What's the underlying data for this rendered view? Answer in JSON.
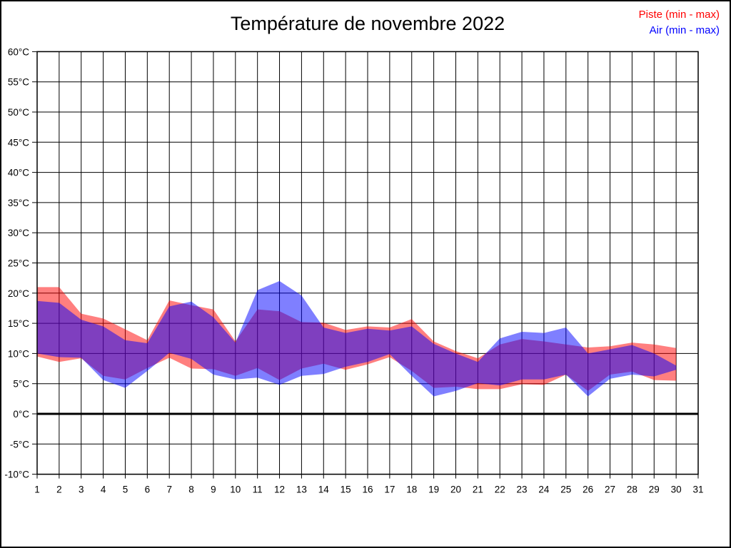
{
  "title": "Température de novembre 2022",
  "legend": {
    "piste": "Piste (min - max)",
    "air": "Air (min - max)"
  },
  "colors": {
    "piste": "#ff0000",
    "air": "#0000ff",
    "piste_fill": "rgba(255,0,0,0.5)",
    "air_fill": "rgba(0,0,255,0.5)",
    "grid": "#000000",
    "background": "#ffffff"
  },
  "chart_data": {
    "type": "area",
    "title": "Température de novembre 2022",
    "xlabel": "",
    "ylabel": "",
    "xlim": [
      1,
      31
    ],
    "ylim": [
      -10,
      60
    ],
    "grid": true,
    "zero_line_bold": true,
    "legend_position": "top-right",
    "unit": "°C",
    "x": [
      1,
      2,
      3,
      4,
      5,
      6,
      7,
      8,
      9,
      10,
      11,
      12,
      13,
      14,
      15,
      16,
      17,
      18,
      19,
      20,
      21,
      22,
      23,
      24,
      25,
      26,
      27,
      28,
      29,
      30
    ],
    "series": [
      {
        "name": "Piste (min - max)",
        "max": [
          21,
          21,
          16.6,
          15.8,
          14,
          12.2,
          18.8,
          18,
          17.3,
          12,
          17.3,
          17,
          15.2,
          15.1,
          13.9,
          14.5,
          14.3,
          15.7,
          12,
          10.4,
          9.2,
          11.5,
          12.4,
          12,
          11.5,
          11,
          11.2,
          11.8,
          11.5,
          10.9
        ],
        "min": [
          9.5,
          8.6,
          9.2,
          6.3,
          5.7,
          7.6,
          9.3,
          7.5,
          7.4,
          6.3,
          7.6,
          5.6,
          7.5,
          8.3,
          7.3,
          8.2,
          9.4,
          7.1,
          4.3,
          4.5,
          4.1,
          4.1,
          4.9,
          4.8,
          6.5,
          3.8,
          6.5,
          7,
          5.6,
          5.5
        ]
      },
      {
        "name": "Air (min - max)",
        "max": [
          18.7,
          18.4,
          15.6,
          14.5,
          12.2,
          11.7,
          17.8,
          18.6,
          16,
          11.8,
          20.5,
          22,
          19.6,
          14.3,
          13.4,
          14.1,
          13.8,
          14.5,
          11.6,
          10,
          8.6,
          12.5,
          13.6,
          13.4,
          14.3,
          10,
          10.7,
          11.4,
          10,
          8
        ],
        "min": [
          10,
          9.4,
          9.3,
          5.6,
          4.3,
          7.1,
          10.1,
          9.1,
          6.5,
          5.7,
          6,
          4.8,
          6.3,
          6.6,
          7.8,
          8.6,
          9.9,
          6.3,
          2.9,
          3.8,
          5.1,
          4.7,
          5.7,
          5.7,
          6.5,
          2.9,
          5.8,
          6.5,
          6.2,
          7.3
        ]
      }
    ],
    "x_ticks": [
      "1",
      "2",
      "3",
      "4",
      "5",
      "6",
      "7",
      "8",
      "9",
      "10",
      "11",
      "12",
      "13",
      "14",
      "15",
      "16",
      "17",
      "18",
      "19",
      "20",
      "21",
      "22",
      "23",
      "24",
      "25",
      "26",
      "27",
      "28",
      "29",
      "30",
      "31"
    ],
    "y_ticks": [
      {
        "value": 60,
        "label": "60°C"
      },
      {
        "value": 55,
        "label": "55°C"
      },
      {
        "value": 50,
        "label": "50°C"
      },
      {
        "value": 45,
        "label": "45°C"
      },
      {
        "value": 40,
        "label": "40°C"
      },
      {
        "value": 35,
        "label": "35°C"
      },
      {
        "value": 30,
        "label": "30°C"
      },
      {
        "value": 25,
        "label": "25°C"
      },
      {
        "value": 20,
        "label": "20°C"
      },
      {
        "value": 15,
        "label": "15°C"
      },
      {
        "value": 10,
        "label": "10°C"
      },
      {
        "value": 5,
        "label": "5°C"
      },
      {
        "value": 0,
        "label": "0°C"
      },
      {
        "value": -5,
        "label": "-5°C"
      },
      {
        "value": -10,
        "label": "-10°C"
      }
    ]
  }
}
